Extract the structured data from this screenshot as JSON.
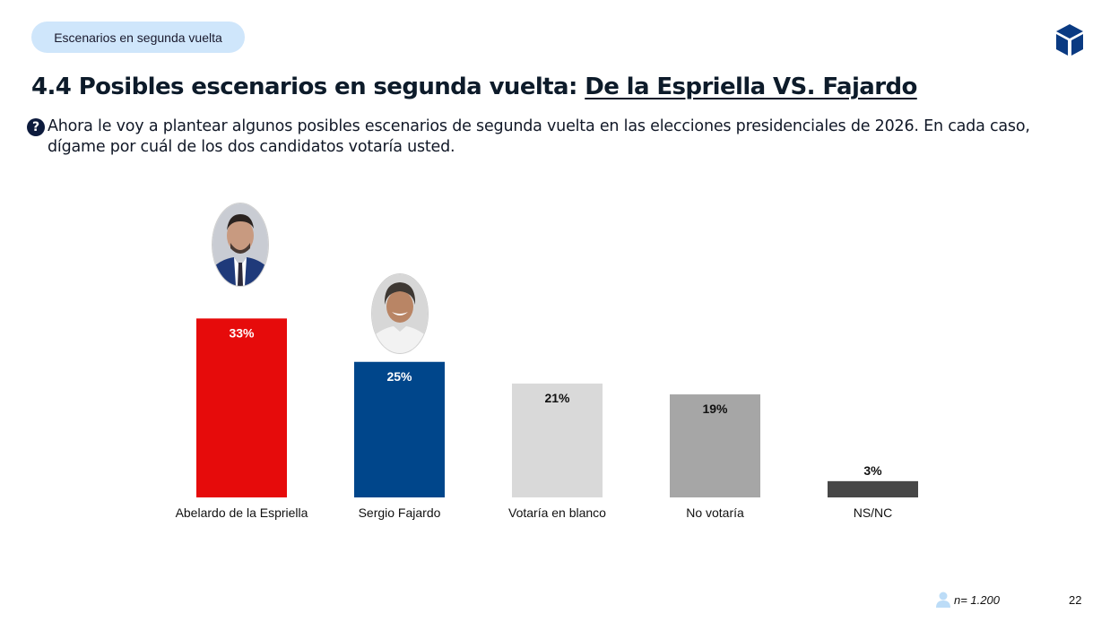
{
  "header": {
    "section_pill": "Escenarios en segunda vuelta",
    "logo_icon": "cube-icon",
    "title_prefix": "4.4 Posibles escenarios en segunda vuelta: ",
    "title_matchup": "De la Espriella VS. Fajardo"
  },
  "question": {
    "icon": "question-circle-icon",
    "text": "Ahora le voy a plantear algunos posibles escenarios de segunda vuelta en las elecciones presidenciales de 2026. En cada caso, dígame por cuál de los dos candidatos votaría usted."
  },
  "chart_data": {
    "type": "bar",
    "title": "",
    "xlabel": "",
    "ylabel": "",
    "ylim": [
      0,
      35
    ],
    "grid": false,
    "legend": "none",
    "categories": [
      "Abelardo de la Espriella",
      "Sergio Fajardo",
      "Votaría en blanco",
      "No votaría",
      "NS/NC"
    ],
    "values": [
      33,
      25,
      21,
      19,
      3
    ],
    "value_labels": [
      "33%",
      "25%",
      "21%",
      "19%",
      "3%"
    ],
    "colors": [
      "#e60b0b",
      "#00468b",
      "#d9d9d9",
      "#a6a6a6",
      "#474747"
    ],
    "label_colors": [
      "#ffffff",
      "#ffffff",
      "#111111",
      "#111111",
      "#111111"
    ],
    "portraits": [
      {
        "category": "Abelardo de la Espriella",
        "icon": "candidate-portrait-espriella"
      },
      {
        "category": "Sergio Fajardo",
        "icon": "candidate-portrait-fajardo"
      }
    ]
  },
  "footer": {
    "sample_icon": "person-icon",
    "sample_size": "n= 1.200",
    "page_number": "22"
  }
}
